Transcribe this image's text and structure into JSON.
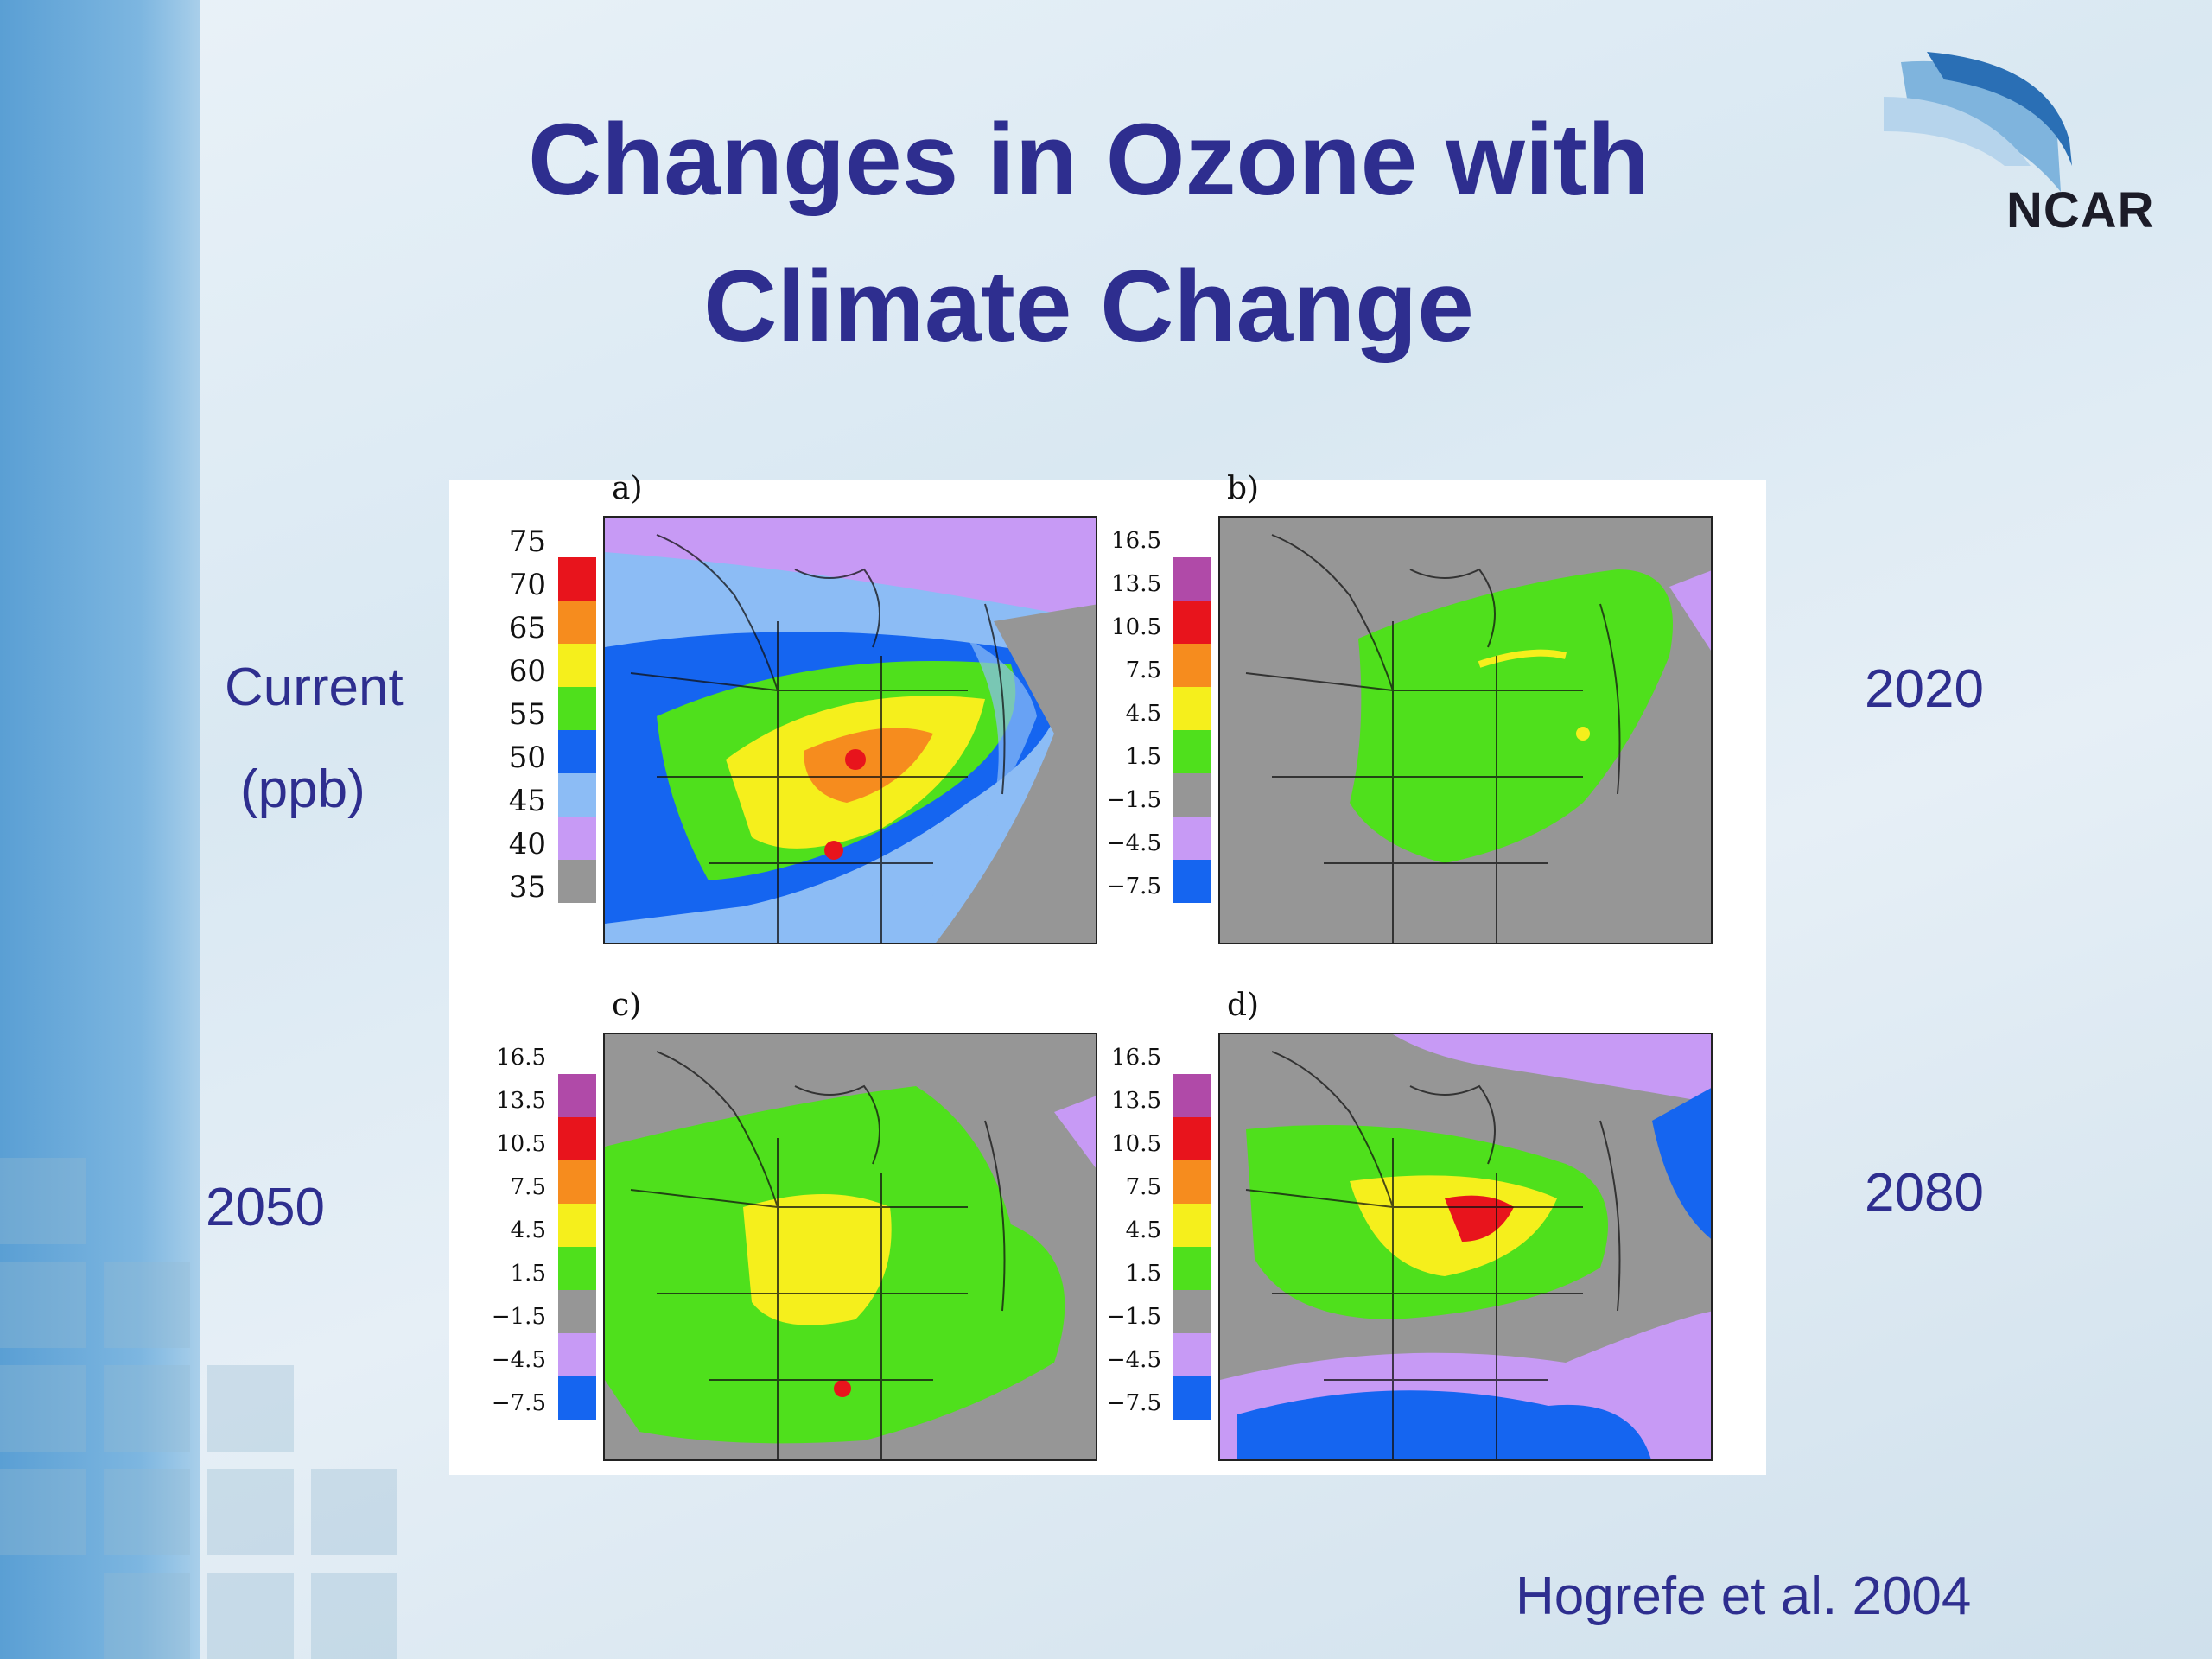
{
  "slide": {
    "title_line1": "Changes in Ozone with",
    "title_line2": "Climate Change",
    "logo_text": "NCAR",
    "citation": "Hogrefe et al. 2004"
  },
  "labels": {
    "current_line1": "Current",
    "current_line2": "(ppb)",
    "y2020": "2020",
    "y2050": "2050",
    "y2080": "2080"
  },
  "panels": [
    {
      "letter": "a)",
      "scale": [
        "75",
        "70",
        "65",
        "60",
        "55",
        "50",
        "45",
        "40",
        "35"
      ],
      "colors": [
        "#e8141c",
        "#f68c1e",
        "#f5ef1c",
        "#4fe01c",
        "#1565f0",
        "#8cbcf5",
        "#c79af5",
        "#969696"
      ]
    },
    {
      "letter": "b)",
      "scale": [
        "16.5",
        "13.5",
        "10.5",
        "7.5",
        "4.5",
        "1.5",
        "−1.5",
        "−4.5",
        "−7.5"
      ],
      "colors": [
        "#b04aa8",
        "#e8141c",
        "#f68c1e",
        "#f5ef1c",
        "#4fe01c",
        "#969696",
        "#c79af5",
        "#1565f0"
      ]
    },
    {
      "letter": "c)",
      "scale": [
        "16.5",
        "13.5",
        "10.5",
        "7.5",
        "4.5",
        "1.5",
        "−1.5",
        "−4.5",
        "−7.5"
      ],
      "colors": [
        "#b04aa8",
        "#e8141c",
        "#f68c1e",
        "#f5ef1c",
        "#4fe01c",
        "#969696",
        "#c79af5",
        "#1565f0"
      ]
    },
    {
      "letter": "d)",
      "scale": [
        "16.5",
        "13.5",
        "10.5",
        "7.5",
        "4.5",
        "1.5",
        "−1.5",
        "−4.5",
        "−7.5"
      ],
      "colors": [
        "#b04aa8",
        "#e8141c",
        "#f68c1e",
        "#f5ef1c",
        "#4fe01c",
        "#969696",
        "#c79af5",
        "#1565f0"
      ]
    }
  ]
}
